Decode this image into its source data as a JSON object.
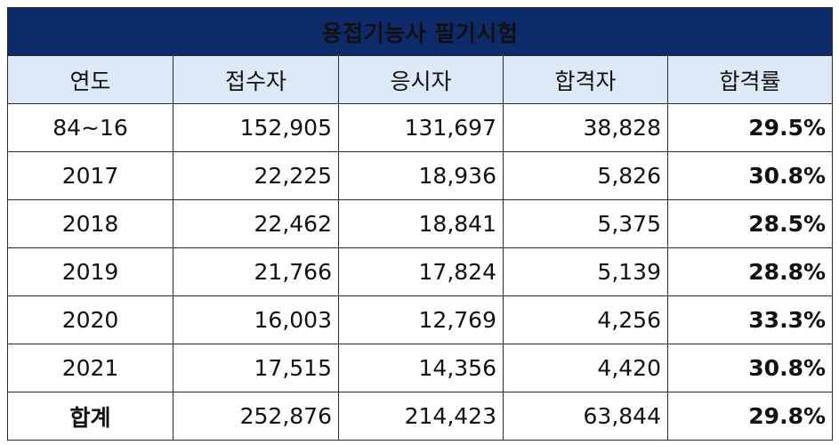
{
  "title": "용접기능사 필기시험",
  "headers": [
    "연도",
    "접수자",
    "응시자",
    "합격자",
    "합격률"
  ],
  "rows": [
    {
      "year": "84~16",
      "applicants": "152,905",
      "examinees": "131,697",
      "passers": "38,828",
      "rate": "29.5%"
    },
    {
      "year": "2017",
      "applicants": "22,225",
      "examinees": "18,936",
      "passers": "5,826",
      "rate": "30.8%"
    },
    {
      "year": "2018",
      "applicants": "22,462",
      "examinees": "18,841",
      "passers": "5,375",
      "rate": "28.5%"
    },
    {
      "year": "2019",
      "applicants": "21,766",
      "examinees": "17,824",
      "passers": "5,139",
      "rate": "28.8%"
    },
    {
      "year": "2020",
      "applicants": "16,003",
      "examinees": "12,769",
      "passers": "4,256",
      "rate": "33.3%"
    },
    {
      "year": "2021",
      "applicants": "17,515",
      "examinees": "14,356",
      "passers": "4,420",
      "rate": "30.8%"
    },
    {
      "year": "합계",
      "applicants": "252,876",
      "examinees": "214,423",
      "passers": "63,844",
      "rate": "29.8%"
    }
  ],
  "colors": {
    "title_bg": "#0d2a6b",
    "title_text": "#ffffff",
    "header_bg": "#dde9f6",
    "border": "#2b2b2b"
  }
}
